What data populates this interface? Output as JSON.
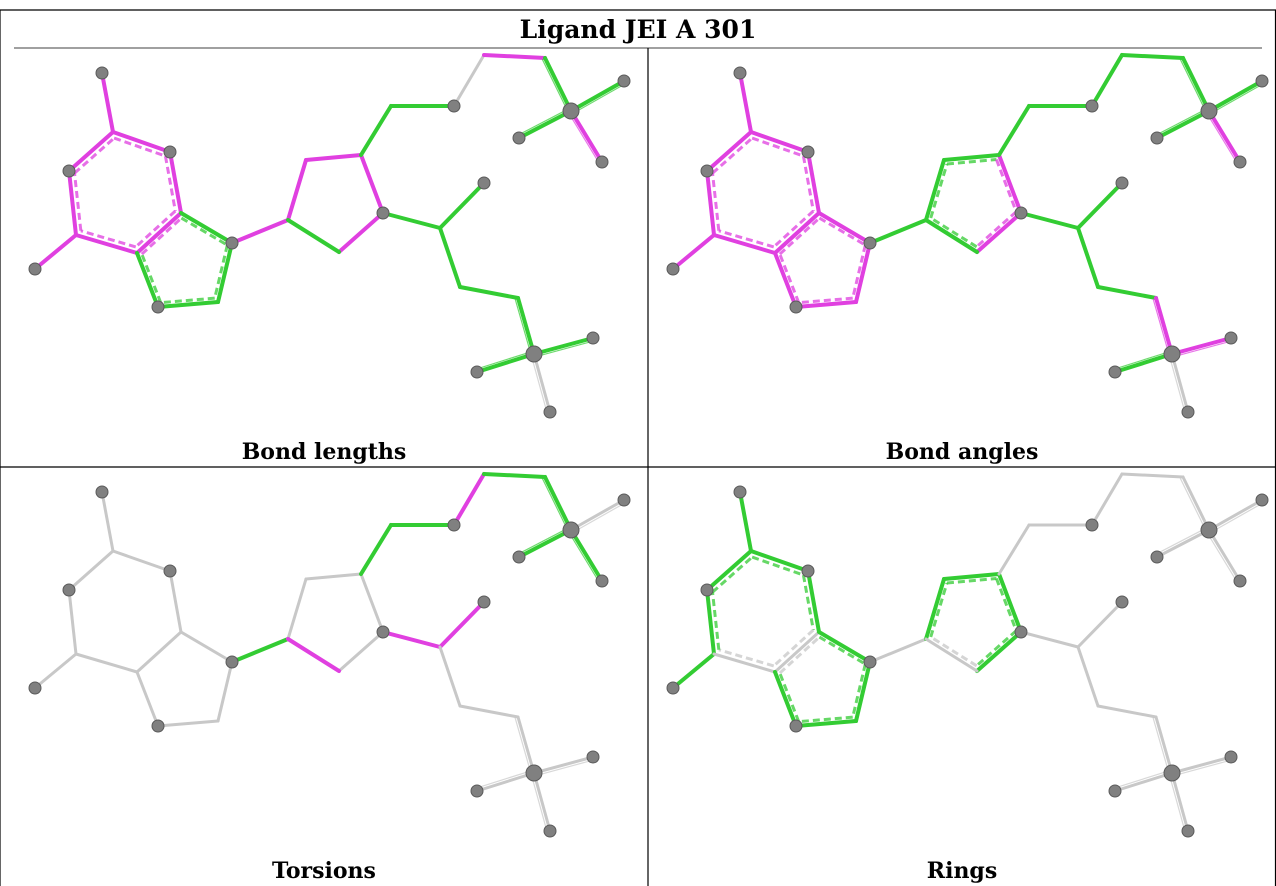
{
  "title": "Ligand JEI A 301",
  "colors": {
    "good": "#33cc33",
    "outlier": "#e040e0",
    "neutral": "#c8c8c8",
    "atom": "#808080",
    "border": "#000000"
  },
  "panels": [
    {
      "id": "bond-lengths",
      "label": "Bond lengths",
      "bond_colors": [
        "outlier",
        "outlier",
        "outlier",
        "outlier",
        "outlier",
        "outlier",
        "outlier",
        "outlier",
        "good",
        "good",
        "good",
        "good",
        "outlier",
        "outlier",
        "outlier",
        "outlier",
        "outlier",
        "good",
        "good",
        "good",
        "neutral",
        "outlier",
        "good",
        "good",
        "good",
        "outlier",
        "good",
        "good",
        "good",
        "good",
        "good",
        "good",
        "good"
      ],
      "dashed_rings": [
        "six",
        "five"
      ]
    },
    {
      "id": "bond-angles",
      "label": "Bond angles",
      "bond_colors": [
        "outlier",
        "outlier",
        "outlier",
        "outlier",
        "outlier",
        "outlier",
        "outlier",
        "outlier",
        "outlier",
        "outlier",
        "outlier",
        "outlier",
        "good",
        "good",
        "good",
        "outlier",
        "outlier",
        "good",
        "good",
        "good",
        "good",
        "good",
        "good",
        "good",
        "good",
        "outlier",
        "good",
        "good",
        "good",
        "good",
        "outlier",
        "outlier",
        "good"
      ],
      "dashed_rings": [
        "six",
        "five",
        "pyrazole"
      ]
    },
    {
      "id": "torsions",
      "label": "Torsions",
      "bond_colors": [
        "neutral",
        "neutral",
        "neutral",
        "neutral",
        "neutral",
        "neutral",
        "neutral",
        "neutral",
        "neutral",
        "neutral",
        "neutral",
        "neutral",
        "good",
        "neutral",
        "neutral",
        "neutral",
        "neutral",
        "outlier",
        "good",
        "good",
        "outlier",
        "good",
        "good",
        "neutral",
        "good",
        "good",
        "outlier",
        "outlier",
        "neutral",
        "neutral",
        "neutral",
        "neutral",
        "neutral"
      ],
      "dashed_rings": []
    },
    {
      "id": "rings",
      "label": "Rings",
      "bond_colors": [
        "good",
        "good",
        "good",
        "good",
        "good",
        "good",
        "neutral",
        "neutral",
        "good",
        "good",
        "good",
        "good",
        "neutral",
        "good",
        "good",
        "good",
        "good",
        "neutral",
        "neutral",
        "neutral",
        "neutral",
        "neutral",
        "neutral",
        "neutral",
        "neutral",
        "neutral",
        "neutral",
        "neutral",
        "neutral",
        "neutral",
        "neutral",
        "neutral",
        "neutral"
      ],
      "dashed_rings": [
        "six",
        "five",
        "pyrazole"
      ]
    }
  ]
}
